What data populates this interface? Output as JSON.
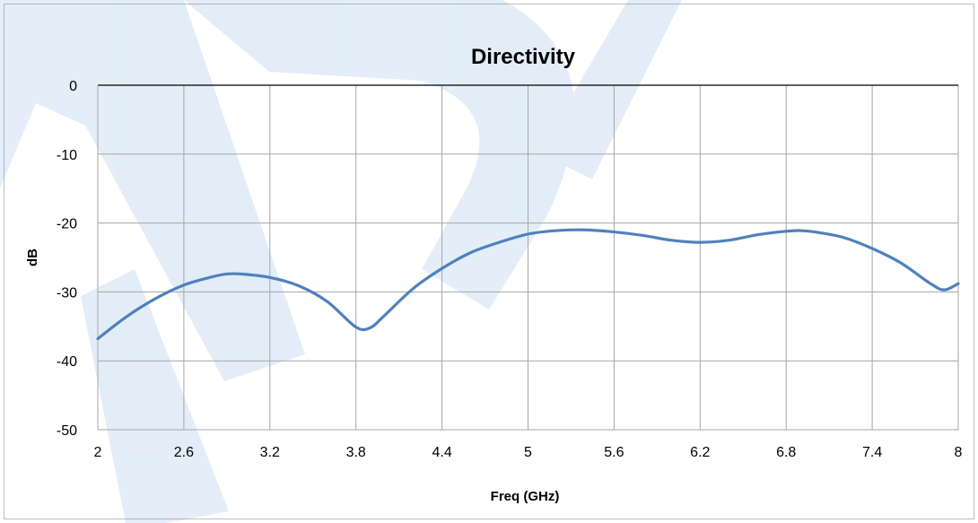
{
  "chart_data": {
    "type": "line",
    "title": "Directivity",
    "xlabel": "Freq (GHz)",
    "ylabel": "dB",
    "xlim": [
      2,
      8
    ],
    "ylim": [
      -50,
      0
    ],
    "x_ticks": [
      "2",
      "2.6",
      "3.2",
      "3.8",
      "4.4",
      "5",
      "5.6",
      "6.2",
      "6.8",
      "7.4",
      "8"
    ],
    "y_ticks": [
      "0",
      "-10",
      "-20",
      "-30",
      "-40",
      "-50"
    ],
    "grid": true,
    "legend": "none",
    "series": [
      {
        "color": "#4f81bd",
        "x": [
          2.0,
          2.2,
          2.4,
          2.6,
          2.8,
          2.9,
          3.0,
          3.2,
          3.4,
          3.6,
          3.8,
          3.9,
          4.0,
          4.2,
          4.4,
          4.6,
          4.8,
          5.0,
          5.2,
          5.4,
          5.6,
          5.8,
          6.0,
          6.2,
          6.4,
          6.6,
          6.8,
          6.9,
          7.0,
          7.2,
          7.4,
          7.6,
          7.8,
          7.9,
          8.0
        ],
        "y": [
          -36.8,
          -33.6,
          -31.0,
          -29.0,
          -27.8,
          -27.4,
          -27.4,
          -27.9,
          -29.1,
          -31.4,
          -35.1,
          -35.2,
          -33.4,
          -29.5,
          -26.6,
          -24.3,
          -22.8,
          -21.6,
          -21.1,
          -21.0,
          -21.3,
          -21.8,
          -22.5,
          -22.8,
          -22.5,
          -21.7,
          -21.2,
          -21.1,
          -21.3,
          -22.1,
          -23.7,
          -25.8,
          -28.7,
          -29.7,
          -28.8
        ]
      }
    ]
  }
}
